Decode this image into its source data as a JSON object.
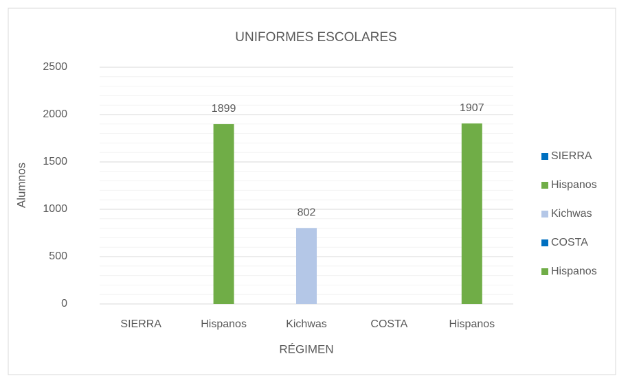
{
  "chart_data": {
    "type": "bar",
    "title": "UNIFORMES ESCOLARES",
    "x_label": "RÉGIMEN",
    "y_label": "Alumnos",
    "categories": [
      "SIERRA",
      "Hispanos",
      "Kichwas",
      "COSTA",
      "Hispanos"
    ],
    "values": [
      null,
      1899,
      802,
      null,
      1907
    ],
    "colors": [
      "#0070c0",
      "#70ad47",
      "#b4c7e7",
      "#0070c0",
      "#70ad47"
    ],
    "ylim": [
      0,
      2500
    ],
    "yticks": [
      0,
      500,
      1000,
      1500,
      2000,
      2500
    ],
    "yminorticks": [
      100,
      200,
      300,
      400,
      600,
      700,
      800,
      900,
      1100,
      1200,
      1300,
      1400,
      1600,
      1700,
      1800,
      1900,
      2100,
      2200,
      2300,
      2400
    ],
    "grid": true,
    "legend": "right"
  }
}
